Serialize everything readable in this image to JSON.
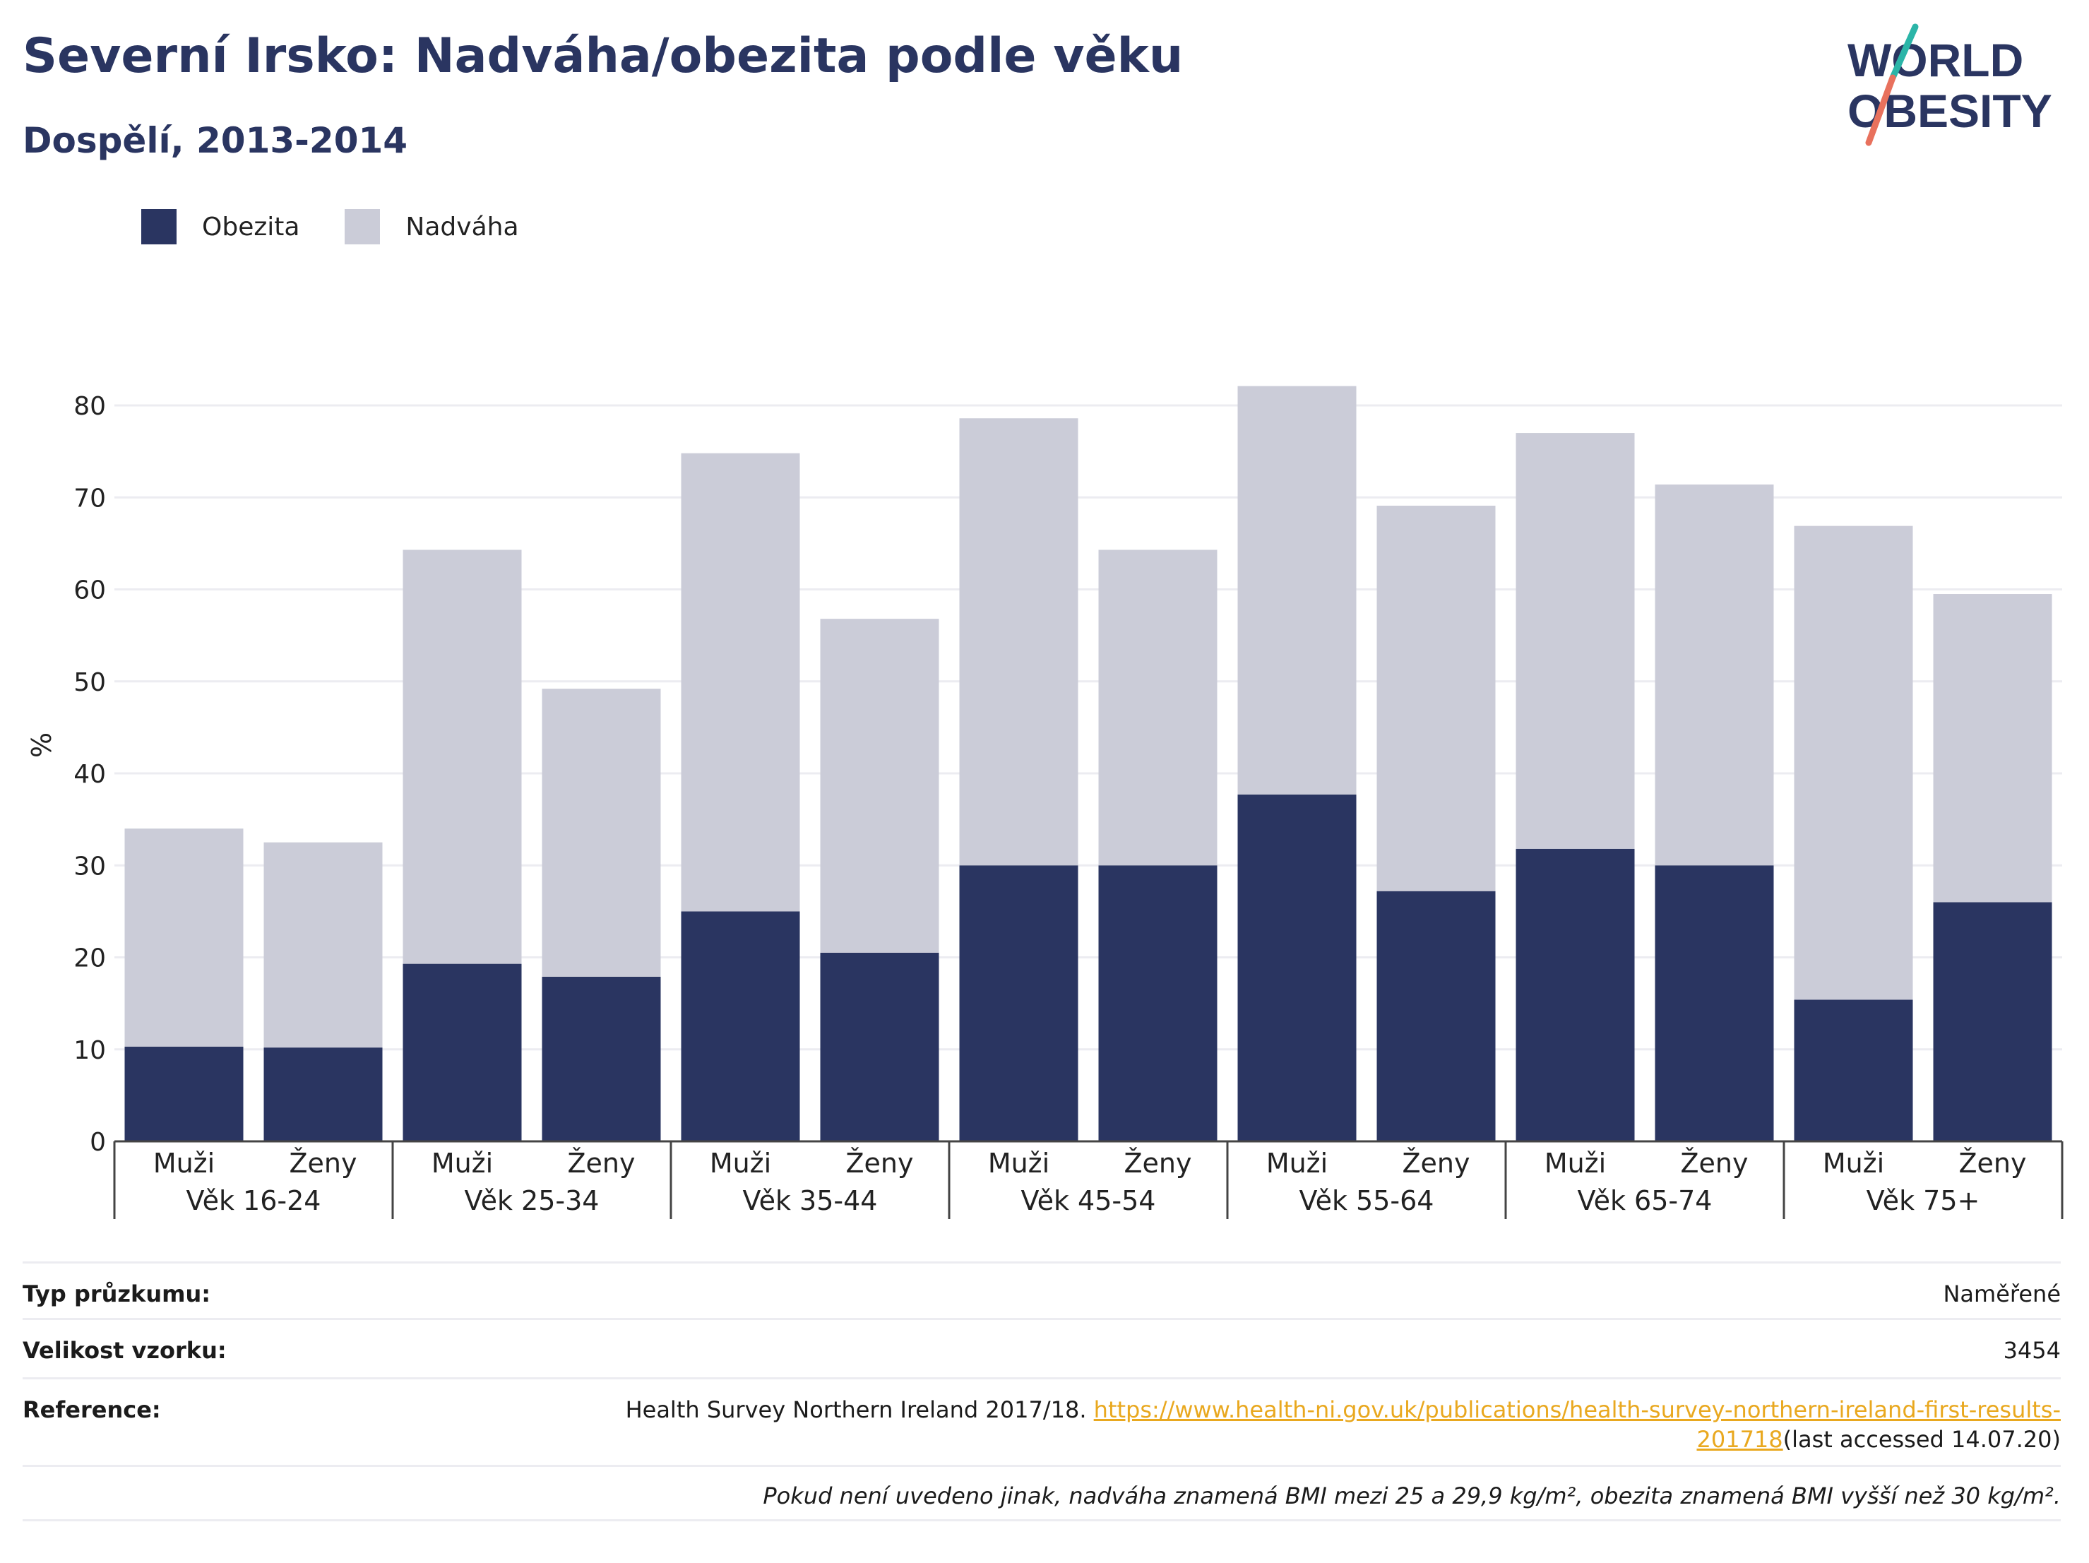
{
  "header": {
    "title": "Severní Irsko: Nadváha/obezita podle věku",
    "subtitle": "Dospělí, 2013-2014"
  },
  "logo": {
    "line1": "WORLD",
    "line2": "OBESITY",
    "slash_colors": [
      "#2bb5a8",
      "#e8715d"
    ]
  },
  "legend": {
    "items": [
      {
        "label": "Obezita",
        "color": "#2a3561"
      },
      {
        "label": "Nadváha",
        "color": "#cbccd8"
      }
    ]
  },
  "chart_data": {
    "type": "bar",
    "stacked": true,
    "ylabel": "%",
    "ylim": [
      0,
      80
    ],
    "yticks": [
      0,
      10,
      20,
      30,
      40,
      50,
      60,
      70,
      80
    ],
    "grid": true,
    "legend_position": "top-left",
    "groups": [
      "Věk 16-24",
      "Věk 25-34",
      "Věk 35-44",
      "Věk 45-54",
      "Věk 55-64",
      "Věk 65-74",
      "Věk 75+"
    ],
    "subcategories": [
      "Muži",
      "Ženy"
    ],
    "series": [
      {
        "name": "Obezita",
        "color": "#2a3561",
        "values": [
          10.3,
          10.2,
          19.3,
          17.9,
          25,
          20.5,
          30,
          30,
          37.7,
          27.2,
          31.8,
          30,
          15.4,
          26
        ]
      },
      {
        "name": "Nadváha",
        "color": "#cbccd8",
        "values": [
          23.7,
          22.3,
          45,
          31.3,
          49.8,
          36.3,
          48.6,
          34.3,
          44.4,
          41.9,
          45.2,
          41.4,
          51.5,
          33.5
        ]
      }
    ]
  },
  "info": {
    "survey_type_label": "Typ průzkumu:",
    "survey_type_value": "Naměřené",
    "sample_size_label": "Velikost vzorku:",
    "sample_size_value": "3454",
    "reference_label": "Reference:",
    "reference_text": "Health Survey Northern Ireland 2017/18.",
    "reference_link_line1": "https://www.health-ni.gov.uk/publications/health-survey-northern-ireland-first-results-",
    "reference_link_line2": "201718",
    "reference_accessed": "(last accessed 14.07.20)",
    "footnote": "Pokud není uvedeno jinak, nadváha znamená BMI mezi 25 a 29,9 kg/m², obezita znamená BMI vyšší než 30 kg/m²."
  }
}
